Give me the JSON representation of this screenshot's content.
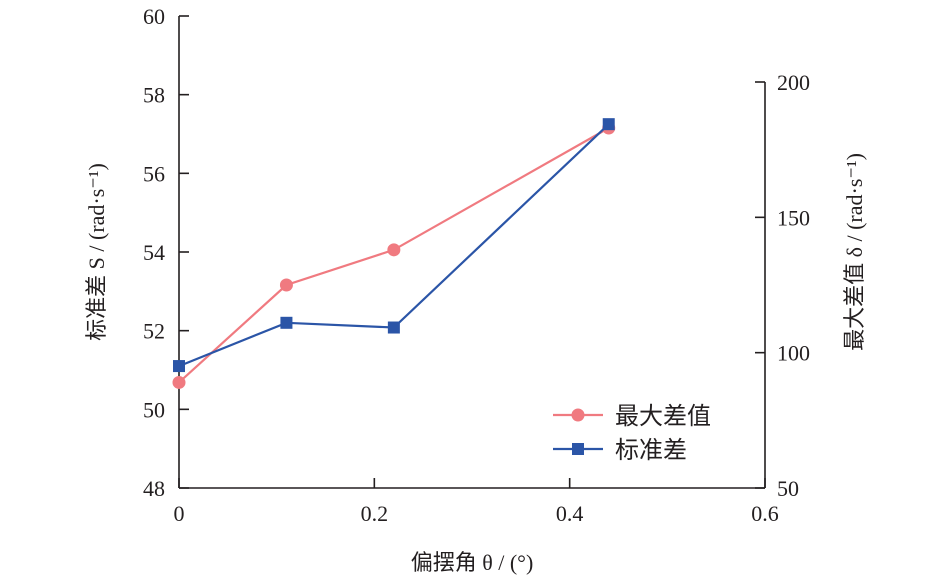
{
  "chart_data": {
    "type": "line",
    "xlabel": "偏摆角 θ / (°)",
    "ylabel_left": "标准差 S / (rad·s⁻¹)",
    "ylabel_right": "最大差值 δ / (rad·s⁻¹)",
    "xlim": [
      0,
      0.6
    ],
    "ylim_left": [
      48,
      60
    ],
    "ylim_right": [
      50,
      200
    ],
    "x_ticks": [
      "0",
      "0.2",
      "0.4",
      "0.6"
    ],
    "y_ticks_left": [
      "48",
      "50",
      "52",
      "54",
      "56",
      "58",
      "60"
    ],
    "y_ticks_right": [
      "50",
      "100",
      "150",
      "200"
    ],
    "series": [
      {
        "name": "最大差值",
        "axis": "right",
        "marker": "circle",
        "color": "#f07a80",
        "x": [
          0,
          0.11,
          0.22,
          0.44
        ],
        "y": [
          89,
          125,
          138,
          183
        ]
      },
      {
        "name": "标准差",
        "axis": "left",
        "marker": "square",
        "color": "#2b55a7",
        "x": [
          0,
          0.11,
          0.22,
          0.44
        ],
        "y": [
          51.1,
          52.2,
          52.08,
          57.25
        ]
      }
    ],
    "legend_position": "bottom-right",
    "grid": false
  }
}
